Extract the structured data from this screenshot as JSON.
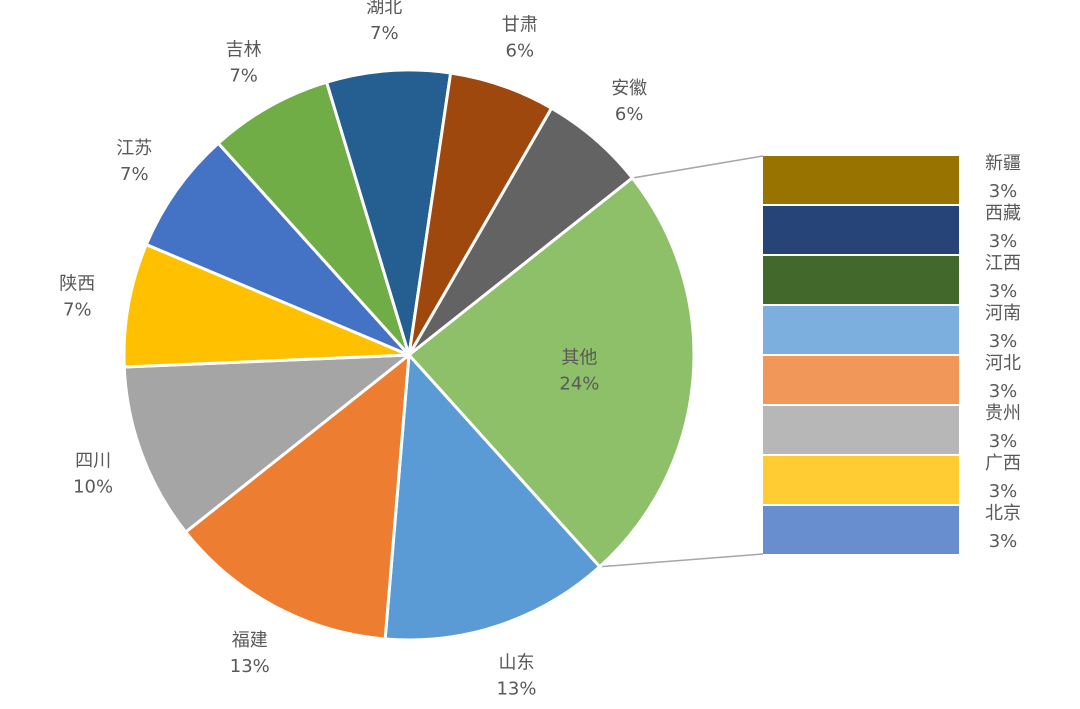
{
  "chart_data": {
    "type": "pie",
    "subtype": "bar-of-pie",
    "slices": [
      {
        "name": "安徽",
        "value": 6,
        "label": "6%",
        "color": "#636363"
      },
      {
        "name": "其他",
        "value": 24,
        "label": "24%",
        "color": "#8DC068"
      },
      {
        "name": "山东",
        "value": 13,
        "label": "13%",
        "color": "#5B9BD5"
      },
      {
        "name": "福建",
        "value": 13,
        "label": "13%",
        "color": "#ED7D31"
      },
      {
        "name": "四川",
        "value": 10,
        "label": "10%",
        "color": "#A5A5A5"
      },
      {
        "name": "陕西",
        "value": 7,
        "label": "7%",
        "color": "#FFC000"
      },
      {
        "name": "江苏",
        "value": 7,
        "label": "7%",
        "color": "#4472C4"
      },
      {
        "name": "吉林",
        "value": 7,
        "label": "7%",
        "color": "#70AD47"
      },
      {
        "name": "湖北",
        "value": 7,
        "label": "7%",
        "color": "#255E91"
      },
      {
        "name": "甘肃",
        "value": 6,
        "label": "6%",
        "color": "#9E480E"
      }
    ],
    "other_breakdown": [
      {
        "name": "新疆",
        "value": 3,
        "label": "3%",
        "color": "#997300"
      },
      {
        "name": "西藏",
        "value": 3,
        "label": "3%",
        "color": "#264478"
      },
      {
        "name": "江西",
        "value": 3,
        "label": "3%",
        "color": "#43682B"
      },
      {
        "name": "河南",
        "value": 3,
        "label": "3%",
        "color": "#7CAFDD"
      },
      {
        "name": "河北",
        "value": 3,
        "label": "3%",
        "color": "#F1975A"
      },
      {
        "name": "贵州",
        "value": 3,
        "label": "3%",
        "color": "#B7B7B7"
      },
      {
        "name": "广西",
        "value": 3,
        "label": "3%",
        "color": "#FFCD33"
      },
      {
        "name": "北京",
        "value": 3,
        "label": "3%",
        "color": "#698ED0"
      }
    ],
    "label_color": "#595959",
    "connector_color": "#A6A6A6"
  }
}
